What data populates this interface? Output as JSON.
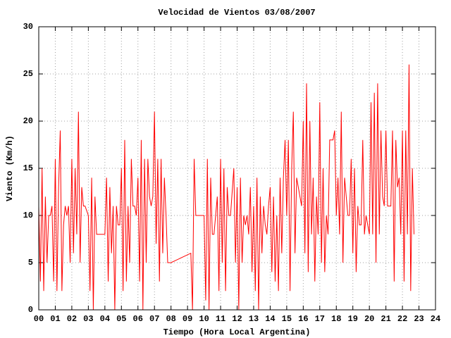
{
  "chart_data": {
    "type": "line",
    "title": "Velocidad de Vientos 03/08/2007",
    "x_label": "Tiempo (Hora Local Argentina)",
    "y_label": "Viento (Km/h)",
    "color": "#ff0000",
    "grid": true,
    "xlim": [
      0,
      24
    ],
    "ylim": [
      0,
      30
    ],
    "xticks": [
      {
        "value": 0,
        "label": "00"
      },
      {
        "value": 1,
        "label": "01"
      },
      {
        "value": 2,
        "label": "02"
      },
      {
        "value": 3,
        "label": "03"
      },
      {
        "value": 4,
        "label": "04"
      },
      {
        "value": 5,
        "label": "05"
      },
      {
        "value": 6,
        "label": "06"
      },
      {
        "value": 7,
        "label": "07"
      },
      {
        "value": 8,
        "label": "08"
      },
      {
        "value": 9,
        "label": "09"
      },
      {
        "value": 10,
        "label": "10"
      },
      {
        "value": 11,
        "label": "11"
      },
      {
        "value": 12,
        "label": "12"
      },
      {
        "value": 13,
        "label": "13"
      },
      {
        "value": 14,
        "label": "14"
      },
      {
        "value": 15,
        "label": "15"
      },
      {
        "value": 16,
        "label": "16"
      },
      {
        "value": 17,
        "label": "17"
      },
      {
        "value": 18,
        "label": "18"
      },
      {
        "value": 19,
        "label": "19"
      },
      {
        "value": 20,
        "label": "20"
      },
      {
        "value": 21,
        "label": "21"
      },
      {
        "value": 22,
        "label": "22"
      },
      {
        "value": 23,
        "label": "23"
      },
      {
        "value": 24,
        "label": "24"
      }
    ],
    "yticks": [
      0,
      5,
      10,
      15,
      20,
      25,
      30
    ],
    "x": [
      0.0,
      0.1,
      0.2,
      0.3,
      0.4,
      0.5,
      0.6,
      0.7,
      0.8,
      0.9,
      1.0,
      1.1,
      1.2,
      1.3,
      1.4,
      1.5,
      1.6,
      1.7,
      1.8,
      1.9,
      2.0,
      2.1,
      2.2,
      2.3,
      2.4,
      2.5,
      2.6,
      2.7,
      2.8,
      3.0,
      3.1,
      3.2,
      3.3,
      3.4,
      3.5,
      3.6,
      3.8,
      4.0,
      4.1,
      4.2,
      4.3,
      4.4,
      4.5,
      4.6,
      4.7,
      4.8,
      4.9,
      5.0,
      5.1,
      5.2,
      5.3,
      5.4,
      5.5,
      5.6,
      5.7,
      5.8,
      5.9,
      6.0,
      6.1,
      6.2,
      6.3,
      6.4,
      6.5,
      6.6,
      6.7,
      6.8,
      6.9,
      7.0,
      7.1,
      7.2,
      7.3,
      7.4,
      7.5,
      7.6,
      7.7,
      7.8,
      8.0,
      9.2,
      9.3,
      9.4,
      9.5,
      9.6,
      9.8,
      10.0,
      10.1,
      10.2,
      10.3,
      10.4,
      10.5,
      10.6,
      10.8,
      10.9,
      11.0,
      11.1,
      11.2,
      11.3,
      11.4,
      11.5,
      11.6,
      11.8,
      11.9,
      12.0,
      12.1,
      12.2,
      12.3,
      12.4,
      12.5,
      12.6,
      12.7,
      12.8,
      12.9,
      13.0,
      13.1,
      13.2,
      13.3,
      13.4,
      13.5,
      13.6,
      13.7,
      13.8,
      13.9,
      14.0,
      14.1,
      14.2,
      14.3,
      14.4,
      14.5,
      14.6,
      14.7,
      14.8,
      14.9,
      15.0,
      15.1,
      15.2,
      15.3,
      15.4,
      15.5,
      15.6,
      15.7,
      15.8,
      15.9,
      16.0,
      16.1,
      16.2,
      16.3,
      16.4,
      16.5,
      16.6,
      16.7,
      16.8,
      16.9,
      17.0,
      17.1,
      17.2,
      17.3,
      17.4,
      17.5,
      17.6,
      17.8,
      17.9,
      18.0,
      18.1,
      18.2,
      18.3,
      18.4,
      18.5,
      18.6,
      18.7,
      18.8,
      18.9,
      19.0,
      19.1,
      19.2,
      19.3,
      19.4,
      19.5,
      19.6,
      19.7,
      19.8,
      19.9,
      20.0,
      20.1,
      20.2,
      20.3,
      20.4,
      20.5,
      20.6,
      20.7,
      20.8,
      20.9,
      21.0,
      21.1,
      21.2,
      21.3,
      21.4,
      21.5,
      21.6,
      21.7,
      21.8,
      21.9,
      22.0,
      22.1,
      22.2,
      22.3,
      22.4,
      22.5,
      22.6,
      22.7
    ],
    "values": [
      11,
      3,
      15,
      2,
      12,
      5,
      10,
      10,
      11,
      3,
      16,
      2,
      13,
      19,
      2,
      9,
      11,
      10,
      11,
      5,
      16,
      6,
      15,
      8,
      21,
      5,
      13,
      11,
      11,
      10,
      2,
      14,
      0,
      12,
      8,
      8,
      8,
      8,
      14,
      3,
      13,
      6,
      11,
      0,
      11,
      9,
      9,
      15,
      2,
      18,
      3,
      11,
      5,
      16,
      11,
      11,
      10,
      14,
      3,
      18,
      0,
      16,
      5,
      16,
      12,
      11,
      12,
      21,
      7,
      16,
      3,
      16,
      6,
      14,
      10,
      5,
      5,
      6,
      0,
      16,
      10,
      10,
      10,
      10,
      1,
      16,
      0,
      14,
      8,
      8,
      12,
      2,
      16,
      5,
      15,
      2,
      13,
      10,
      10,
      15,
      5,
      13,
      0,
      14,
      5,
      10,
      9,
      10,
      8,
      13,
      4,
      11,
      2,
      14,
      0,
      12,
      6,
      11,
      9,
      8,
      11,
      13,
      4,
      12,
      3,
      10,
      2,
      14,
      6,
      14,
      18,
      10,
      18,
      2,
      15,
      21,
      6,
      14,
      13,
      12,
      11,
      20,
      6,
      24,
      4,
      20,
      8,
      14,
      3,
      12,
      8,
      22,
      5,
      15,
      4,
      10,
      8,
      18,
      18,
      19,
      10,
      14,
      8,
      21,
      5,
      14,
      12,
      10,
      10,
      16,
      6,
      15,
      4,
      11,
      9,
      9,
      18,
      8,
      10,
      9,
      8,
      22,
      8,
      23,
      5,
      24,
      8,
      19,
      12,
      11,
      19,
      11,
      11,
      11,
      19,
      3,
      18,
      13,
      14,
      8,
      19,
      3,
      19,
      8,
      26,
      2,
      15,
      8
    ]
  }
}
